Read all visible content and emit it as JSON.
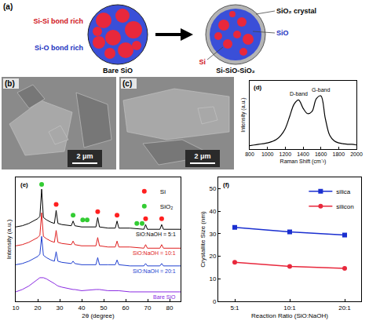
{
  "schematic": {
    "panel": "(a)",
    "left": {
      "title": "Bare SiO",
      "labels": [
        "Si-Si bond rich",
        "Si-O bond rich"
      ]
    },
    "right": {
      "title": "Si-SiO-SiO₂",
      "labels": [
        "SiO₂ crystal",
        "SiO",
        "Si"
      ]
    }
  },
  "images": [
    {
      "panel": "(b)",
      "scale_bar": "2 μm"
    },
    {
      "panel": "(c)",
      "scale_bar": "2 μm"
    }
  ],
  "chart_data": [
    {
      "panel": "(d)",
      "type": "line",
      "x_label": "Raman Shift (cm⁻¹)",
      "y_label": "Intensity (a.u.)",
      "x": [
        800,
        850,
        900,
        950,
        1000,
        1050,
        1100,
        1150,
        1200,
        1250,
        1300,
        1350,
        1400,
        1450,
        1500,
        1550,
        1600,
        1650,
        1700,
        1750,
        1800,
        1850,
        1900,
        1950,
        2000
      ],
      "values": [
        0.05,
        0.06,
        0.07,
        0.08,
        0.09,
        0.11,
        0.14,
        0.2,
        0.3,
        0.48,
        0.66,
        0.72,
        0.6,
        0.52,
        0.55,
        0.74,
        0.78,
        0.45,
        0.2,
        0.12,
        0.09,
        0.08,
        0.07,
        0.07,
        0.06
      ],
      "color": "#000000",
      "line_style": "solid",
      "annotations": [
        {
          "text": "D-band",
          "x": 1350
        },
        {
          "text": "G-band",
          "x": 1600
        }
      ],
      "xlim": [
        800,
        2000
      ],
      "xticks": [
        800,
        1000,
        1200,
        1400,
        1600,
        1800,
        2000
      ],
      "ylim": [
        0,
        1
      ],
      "tick_labels": "x",
      "grid": false
    },
    {
      "panel": "(e)",
      "type": "line",
      "x_label": "2θ (degree)",
      "y_label": "Intensity (a.u.)",
      "x": [
        10,
        13,
        16,
        18,
        20,
        21,
        21.8,
        22.6,
        24,
        26,
        27.6,
        28.4,
        29.2,
        31,
        35.3,
        36.1,
        36.9,
        40,
        46.5,
        47.3,
        48.1,
        52,
        55.3,
        56.1,
        56.9,
        62,
        68.3,
        69.1,
        69.9,
        75.6,
        76.4,
        77.2,
        80,
        85
      ],
      "series": [
        {
          "name": "SiO:NaOH = 5:1",
          "type": "line",
          "color": "#000000",
          "line_style": "solid",
          "values": [
            0.63,
            0.64,
            0.66,
            0.68,
            0.7,
            0.72,
            0.95,
            0.71,
            0.69,
            0.67,
            0.66,
            0.77,
            0.66,
            0.65,
            0.64,
            0.68,
            0.64,
            0.63,
            0.63,
            0.71,
            0.63,
            0.62,
            0.62,
            0.68,
            0.62,
            0.62,
            0.61,
            0.65,
            0.61,
            0.61,
            0.65,
            0.61,
            0.61,
            0.61
          ]
        },
        {
          "name": "SiO:NaOH = 10:1",
          "type": "line",
          "color": "#e02020",
          "line_style": "solid",
          "values": [
            0.47,
            0.48,
            0.5,
            0.52,
            0.54,
            0.56,
            0.75,
            0.55,
            0.53,
            0.51,
            0.5,
            0.6,
            0.5,
            0.49,
            0.48,
            0.51,
            0.48,
            0.47,
            0.47,
            0.54,
            0.47,
            0.46,
            0.46,
            0.51,
            0.46,
            0.46,
            0.45,
            0.48,
            0.45,
            0.45,
            0.48,
            0.45,
            0.45,
            0.45
          ]
        },
        {
          "name": "SiO:NaOH = 20:1",
          "type": "line",
          "color": "#2040d0",
          "line_style": "solid",
          "values": [
            0.31,
            0.32,
            0.34,
            0.36,
            0.38,
            0.4,
            0.55,
            0.39,
            0.37,
            0.35,
            0.34,
            0.42,
            0.34,
            0.33,
            0.32,
            0.34,
            0.32,
            0.31,
            0.31,
            0.37,
            0.31,
            0.31,
            0.31,
            0.35,
            0.31,
            0.3,
            0.3,
            0.32,
            0.3,
            0.3,
            0.32,
            0.3,
            0.3,
            0.3
          ]
        },
        {
          "name": "Bare SiO",
          "type": "line",
          "color": "#8a2be2",
          "line_style": "solid",
          "values": [
            0.08,
            0.1,
            0.13,
            0.16,
            0.19,
            0.2,
            0.2,
            0.2,
            0.19,
            0.17,
            0.15,
            0.14,
            0.13,
            0.12,
            0.1,
            0.1,
            0.1,
            0.09,
            0.1,
            0.1,
            0.1,
            0.09,
            0.09,
            0.09,
            0.09,
            0.08,
            0.08,
            0.08,
            0.08,
            0.08,
            0.08,
            0.08,
            0.08,
            0.08
          ]
        },
        {
          "name": "Si",
          "type": "scatter",
          "color": "#ff2020",
          "marker": "circle",
          "x": [
            28.4,
            47.3,
            56.1,
            69.1,
            76.4
          ],
          "values": [
            0.82,
            0.76,
            0.73,
            0.7,
            0.7
          ]
        },
        {
          "name": "SiO₂",
          "type": "scatter",
          "color": "#33cc33",
          "marker": "circle",
          "x": [
            21.8,
            36.1,
            40.5,
            42.5,
            65.1,
            67.5
          ],
          "values": [
            0.99,
            0.73,
            0.69,
            0.69,
            0.66,
            0.66
          ]
        }
      ],
      "xlim": [
        10,
        85
      ],
      "xticks": [
        10,
        20,
        30,
        40,
        50,
        60,
        70,
        80
      ],
      "ylim": [
        0,
        1.05
      ],
      "tick_labels": "x",
      "legend": "top right",
      "grid": false
    },
    {
      "panel": "(f)",
      "type": "line",
      "x_label": "Reaction Ratio (SiO:NaOH)",
      "y_label": "Crystallite Size (nm)",
      "categories": [
        "5:1",
        "10:1",
        "20:1"
      ],
      "series": [
        {
          "name": "silica",
          "color": "#1a2fd0",
          "marker": "square",
          "line_style": "solid",
          "values": [
            32.8,
            30.8,
            29.4
          ]
        },
        {
          "name": "silicon",
          "color": "#e8283c",
          "marker": "circle",
          "line_style": "solid",
          "values": [
            17.3,
            15.5,
            14.6
          ]
        }
      ],
      "ylim": [
        0,
        55
      ],
      "yticks": [
        0,
        10,
        20,
        30,
        40,
        50
      ],
      "legend": "top right",
      "grid": false
    }
  ]
}
